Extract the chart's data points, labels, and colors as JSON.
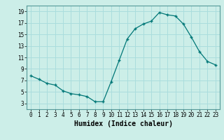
{
  "x": [
    0,
    1,
    2,
    3,
    4,
    5,
    6,
    7,
    8,
    9,
    10,
    11,
    12,
    13,
    14,
    15,
    16,
    17,
    18,
    19,
    20,
    21,
    22,
    23
  ],
  "y": [
    7.8,
    7.2,
    6.5,
    6.2,
    5.2,
    4.7,
    4.5,
    4.2,
    3.3,
    3.3,
    6.8,
    10.5,
    14.2,
    16.0,
    16.8,
    17.3,
    18.8,
    18.4,
    18.2,
    16.8,
    14.5,
    12.0,
    10.3,
    9.7
  ],
  "line_color": "#007777",
  "marker": "+",
  "marker_size": 3.5,
  "bg_color": "#cceee8",
  "grid_color": "#aadddd",
  "xlabel": "Humidex (Indice chaleur)",
  "ylim": [
    2,
    20
  ],
  "xlim": [
    -0.5,
    23.5
  ],
  "yticks": [
    3,
    5,
    7,
    9,
    11,
    13,
    15,
    17,
    19
  ],
  "xticks": [
    0,
    1,
    2,
    3,
    4,
    5,
    6,
    7,
    8,
    9,
    10,
    11,
    12,
    13,
    14,
    15,
    16,
    17,
    18,
    19,
    20,
    21,
    22,
    23
  ],
  "xtick_labels": [
    "0",
    "1",
    "2",
    "3",
    "4",
    "5",
    "6",
    "7",
    "8",
    "9",
    "10",
    "11",
    "12",
    "13",
    "14",
    "15",
    "16",
    "17",
    "18",
    "19",
    "20",
    "21",
    "22",
    "23"
  ],
  "ytick_labels": [
    "3",
    "5",
    "7",
    "9",
    "11",
    "13",
    "15",
    "17",
    "19"
  ],
  "xlabel_fontsize": 7,
  "tick_fontsize": 5.5
}
